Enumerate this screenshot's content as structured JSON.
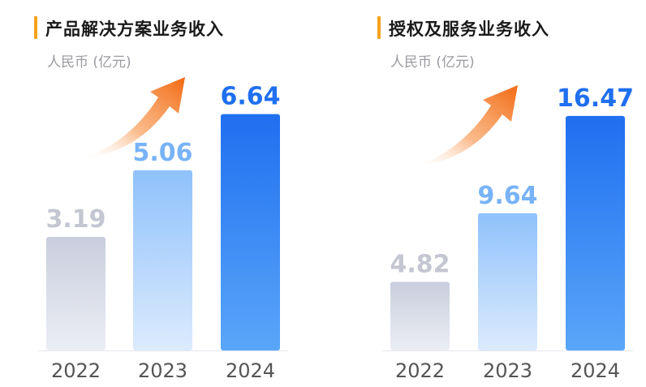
{
  "colors": {
    "accent": "#f7a21b",
    "bar_2022_top": "#c9cede",
    "bar_2022_bottom": "#eceef4",
    "bar_2023_top": "#8fc1fb",
    "bar_2023_bottom": "#dcebfd",
    "bar_2024_top": "#1f6ff0",
    "bar_2024_bottom": "#5aa6f9",
    "label_2022": "#c4c7d2",
    "label_2023": "#78b3f8",
    "label_2024": "#1f6ff0",
    "axis_tick": "#555555",
    "arrow": "#f26a12"
  },
  "chart_data": [
    {
      "type": "bar",
      "title": "产品解决方案业务收入",
      "unit": "人民币 (亿元)",
      "categories": [
        "2022",
        "2023",
        "2024"
      ],
      "values": [
        3.19,
        5.06,
        6.64
      ],
      "value_labels": [
        "3.19",
        "5.06",
        "6.64"
      ],
      "ylim": [
        0,
        9.0
      ],
      "trend_arrow": "upward"
    },
    {
      "type": "bar",
      "title": "授权及服务业务收入",
      "unit": "人民币 (亿元)",
      "categories": [
        "2022",
        "2023",
        "2024"
      ],
      "values": [
        4.82,
        9.64,
        16.47
      ],
      "value_labels": [
        "4.82",
        "9.64",
        "16.47"
      ],
      "ylim": [
        0,
        22.5
      ],
      "trend_arrow": "upward"
    }
  ]
}
